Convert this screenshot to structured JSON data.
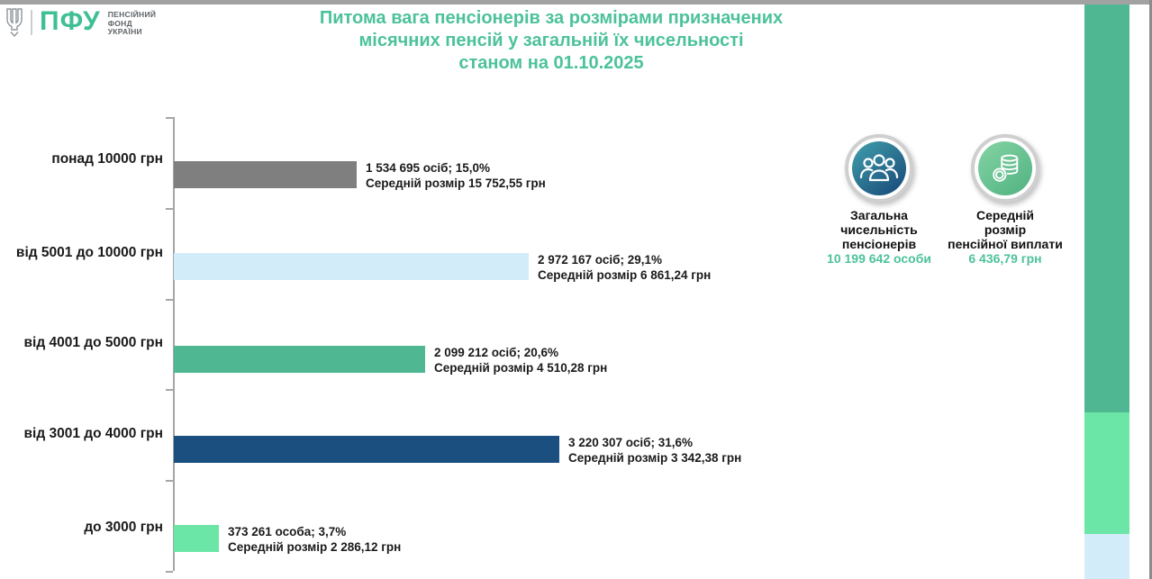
{
  "logo": {
    "abbr": "ПФУ",
    "org_lines": [
      "ПЕНСІЙНИЙ",
      "ФОНД",
      "УКРАЇНИ"
    ]
  },
  "title_lines": [
    "Питома вага пенсіонерів за розмірами призначених",
    "місячних пенсій у загальній їх чисельності",
    "станом на 01.10.2025"
  ],
  "chart_data": {
    "type": "bar",
    "orientation": "horizontal",
    "title": "Питома вага пенсіонерів за розмірами призначених місячних пенсій у загальній їх чисельності станом на 01.10.2025",
    "categories": [
      "понад 10000 грн",
      "від 5001 до 10000 грн",
      "від 4001 до 5000 грн",
      "від 3001 до 4000 грн",
      "до 3000 грн"
    ],
    "values_percent": [
      15.0,
      29.1,
      20.6,
      31.6,
      3.7
    ],
    "persons": [
      1534695,
      2972167,
      2099212,
      3220307,
      373261
    ],
    "average_pension_uah": [
      15752.55,
      6861.24,
      4510.28,
      3342.38,
      2286.12
    ],
    "xlim_percent": [
      0,
      33
    ],
    "grid": false,
    "legend": false,
    "rows": [
      {
        "category": "понад 10000 грн",
        "percent": 15.0,
        "color": "#7f7f7f",
        "label1": "1 534 695 осіб;  15,0%",
        "label2": "Середній розмір 15 752,55 грн"
      },
      {
        "category": "від 5001 до 10000 грн",
        "percent": 29.1,
        "color": "#d3ecfa",
        "label1": "2 972 167 осіб; 29,1%",
        "label2": "Середній розмір 6 861,24 грн"
      },
      {
        "category": "від 4001 до 5000 грн",
        "percent": 20.6,
        "color": "#4fb893",
        "label1": "2 099 212 осіб; 20,6%",
        "label2": "Середній розмір 4 510,28 грн"
      },
      {
        "category": "від 3001 до 4000 грн",
        "percent": 31.6,
        "color": "#1b4f80",
        "label1": "3 220 307 осіб; 31,6%",
        "label2": "Середній розмір 3 342,38 грн"
      },
      {
        "category": "до 3000 грн",
        "percent": 3.7,
        "color": "#6ce6a6",
        "label1": "373 261 особа; 3,7%",
        "label2": "Середній розмір 2 286,12 грн"
      }
    ]
  },
  "info_panel": {
    "total": {
      "label_lines": [
        "Загальна",
        "чисельність",
        "пенсіонерів"
      ],
      "value": "10 199 642 особи"
    },
    "average": {
      "label_lines": [
        "Середній",
        "розмір",
        "пенсійної виплати"
      ],
      "value": "6 436,79 грн"
    }
  },
  "colors": {
    "accent_green": "#4cc29a",
    "logo_green": "#3fbf93",
    "axis_gray": "#a6a6a6",
    "band_segments": [
      "#4fb893",
      "#6ce6a6",
      "#d3ecfa"
    ]
  }
}
